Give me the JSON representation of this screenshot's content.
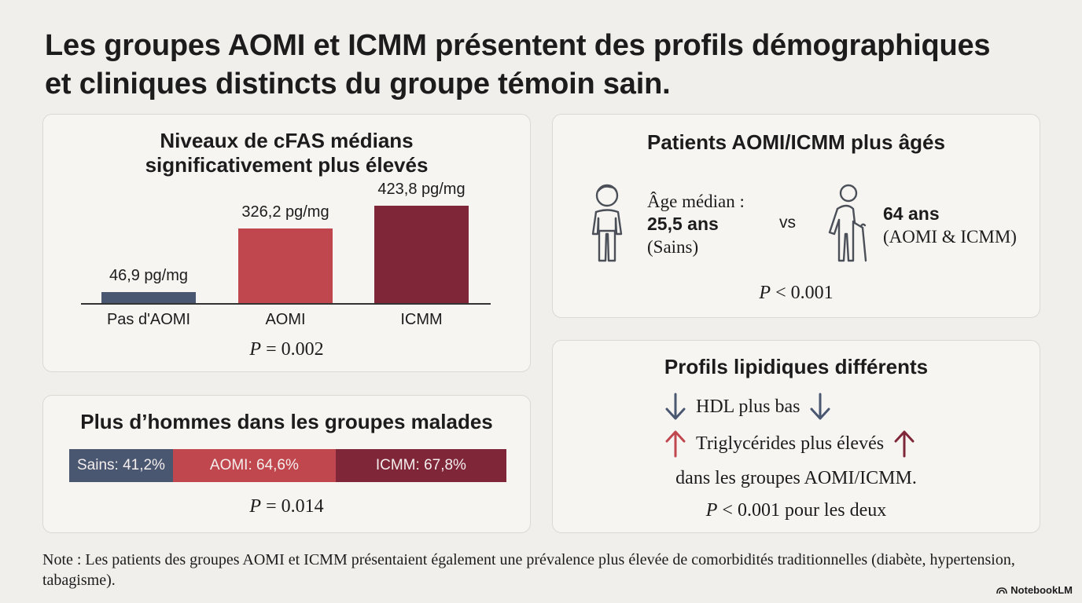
{
  "title": {
    "line1": "Les groupes AOMI et ICMM présentent des profils démographiques",
    "line2": "et cliniques distincts du groupe témoin sain."
  },
  "cfas": {
    "title_line1": "Niveaux de cFAS médians",
    "title_line2": "significativement plus élevés",
    "p_label": "P",
    "p_value": "= 0.002"
  },
  "men": {
    "title": "Plus d’hommes dans les groupes malades",
    "p_label": "P",
    "p_value": "= 0.014"
  },
  "age": {
    "title": "Patients AOMI/ICMM plus âgés",
    "left_label": "Âge médian :",
    "left_value": "25,5 ans",
    "left_group": "(Sains)",
    "vs": "vs",
    "right_value": "64 ans",
    "right_group": "(AOMI & ICMM)",
    "p_label": "P",
    "p_value": "< 0.001"
  },
  "lipids": {
    "title": "Profils lipidiques différents",
    "line1": "HDL plus bas",
    "line2": "Triglycérides plus élevés",
    "line3": "dans les groupes AOMI/ICMM.",
    "p_label": "P",
    "p_value": "< 0.001 pour les deux"
  },
  "note": "Note : Les patients des groupes AOMI et ICMM présentaient également une prévalence plus élevée de comorbidités traditionnelles (diabète, hypertension, tabagisme).",
  "brand": "NotebookLM",
  "colors": {
    "healthy": "#4a5770",
    "aomi": "#c0474d",
    "icmm": "#7f2638"
  },
  "chart_data": [
    {
      "type": "bar",
      "title": "Niveaux de cFAS médians significativement plus élevés",
      "categories": [
        "Pas d'AOMI",
        "AOMI",
        "ICMM"
      ],
      "values": [
        46.9,
        326.2,
        423.8
      ],
      "value_labels": [
        "46,9 pg/mg",
        "326,2 pg/mg",
        "423,8 pg/mg"
      ],
      "unit": "pg/mg",
      "ylim": [
        0,
        423.8
      ],
      "xlabel": "",
      "ylabel": "",
      "grid": false
    },
    {
      "type": "bar",
      "title": "Plus d’hommes dans les groupes malades",
      "categories": [
        "Sains",
        "AOMI",
        "ICMM"
      ],
      "values": [
        41.2,
        64.6,
        67.8
      ],
      "value_labels": [
        "Sains: 41,2%",
        "AOMI: 64,6%",
        "ICMM: 67,8%"
      ],
      "unit": "%"
    }
  ]
}
